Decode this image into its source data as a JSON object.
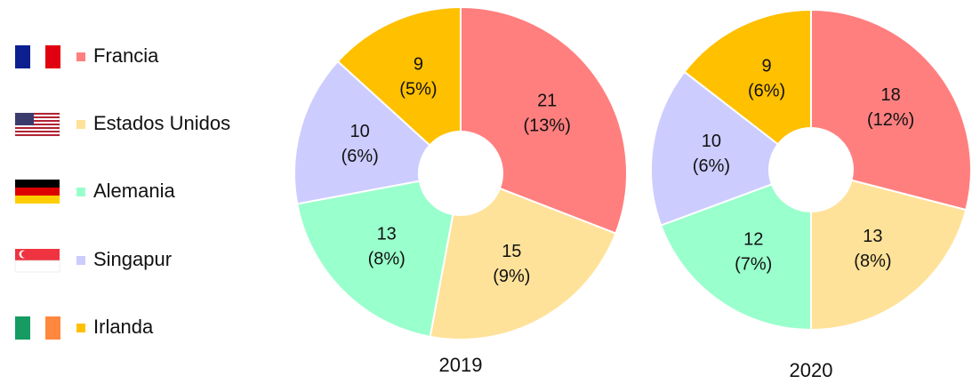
{
  "chart_data": [
    {
      "type": "donut",
      "title": "2019",
      "categories": [
        "Francia",
        "Estados Unidos",
        "Alemania",
        "Singapur",
        "Irlanda"
      ],
      "values": [
        21,
        15,
        13,
        10,
        9
      ],
      "share_labels": [
        "(13%)",
        "(9%)",
        "(8%)",
        "(6%)",
        "(5%)"
      ],
      "colors": [
        "#ff7f7f",
        "#ffe299",
        "#99ffcc",
        "#ccccff",
        "#ffc000"
      ]
    },
    {
      "type": "donut",
      "title": "2020",
      "categories": [
        "Francia",
        "Estados Unidos",
        "Alemania",
        "Singapur",
        "Irlanda"
      ],
      "values": [
        18,
        13,
        12,
        10,
        9
      ],
      "share_labels": [
        "(12%)",
        "(8%)",
        "(7%)",
        "(6%)",
        "(6%)"
      ],
      "colors": [
        "#ff7f7f",
        "#ffe299",
        "#99ffcc",
        "#ccccff",
        "#ffc000"
      ]
    }
  ]
}
